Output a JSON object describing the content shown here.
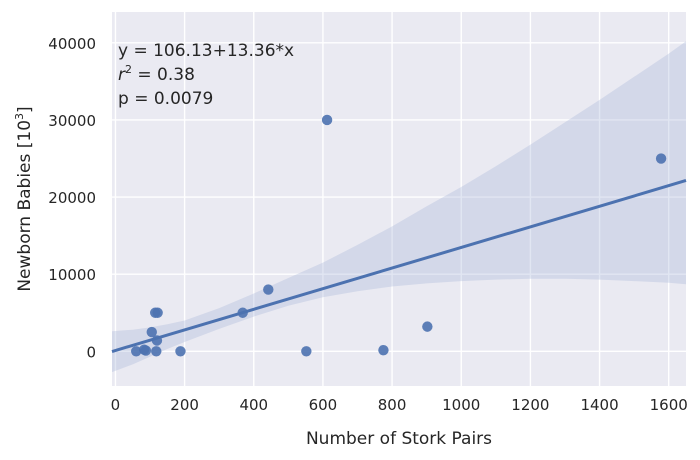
{
  "chart_data": {
    "type": "scatter",
    "xlabel": "Number of Stork Pairs",
    "ylabel": "Newborn Babies [10",
    "ylabel_exponent": "3",
    "ylabel_suffix": "]",
    "xlim": [
      -10,
      1650
    ],
    "ylim": [
      -4500,
      44000
    ],
    "x_ticks": [
      0,
      200,
      400,
      600,
      800,
      1000,
      1200,
      1400,
      1600
    ],
    "y_ticks": [
      0,
      10000,
      20000,
      30000,
      40000
    ],
    "grid": true,
    "points": [
      {
        "x": 60,
        "y": 0
      },
      {
        "x": 83,
        "y": 200
      },
      {
        "x": 88,
        "y": 100
      },
      {
        "x": 105,
        "y": 2500
      },
      {
        "x": 115,
        "y": 5000
      },
      {
        "x": 122,
        "y": 5000
      },
      {
        "x": 118,
        "y": 0
      },
      {
        "x": 120,
        "y": 1400
      },
      {
        "x": 188,
        "y": 0
      },
      {
        "x": 368,
        "y": 5000
      },
      {
        "x": 442,
        "y": 8000
      },
      {
        "x": 552,
        "y": 0
      },
      {
        "x": 612,
        "y": 30000
      },
      {
        "x": 775,
        "y": 150
      },
      {
        "x": 902,
        "y": 3200
      },
      {
        "x": 1578,
        "y": 25000
      }
    ],
    "regression": {
      "intercept": 106.13,
      "slope": 13.36
    },
    "confidence_band": {
      "x": [
        -10,
        50,
        100,
        150,
        200,
        300,
        400,
        500,
        600,
        700,
        800,
        900,
        1000,
        1100,
        1200,
        1300,
        1400,
        1500,
        1600,
        1650
      ],
      "upper": [
        2600,
        2800,
        3100,
        3500,
        4000,
        5600,
        7500,
        9500,
        11500,
        13800,
        16200,
        18800,
        21300,
        24000,
        26800,
        29700,
        32600,
        35600,
        38600,
        40200
      ],
      "lower": [
        -2700,
        -1700,
        -700,
        300,
        1200,
        2900,
        4500,
        5900,
        7000,
        7800,
        8400,
        8800,
        9100,
        9300,
        9400,
        9400,
        9300,
        9100,
        8900,
        8700
      ]
    },
    "annotation": {
      "line1": "y = 106.13+13.36*x",
      "r_symbol": "r",
      "r_exponent": "2",
      "r_value": " = 0.38",
      "p_line": "p = 0.0079"
    },
    "colors": {
      "background": "#eaeaf2",
      "grid": "#ffffff",
      "points": "#4c72b0",
      "line": "#4c72b0",
      "band": "#a8b7d9"
    }
  }
}
